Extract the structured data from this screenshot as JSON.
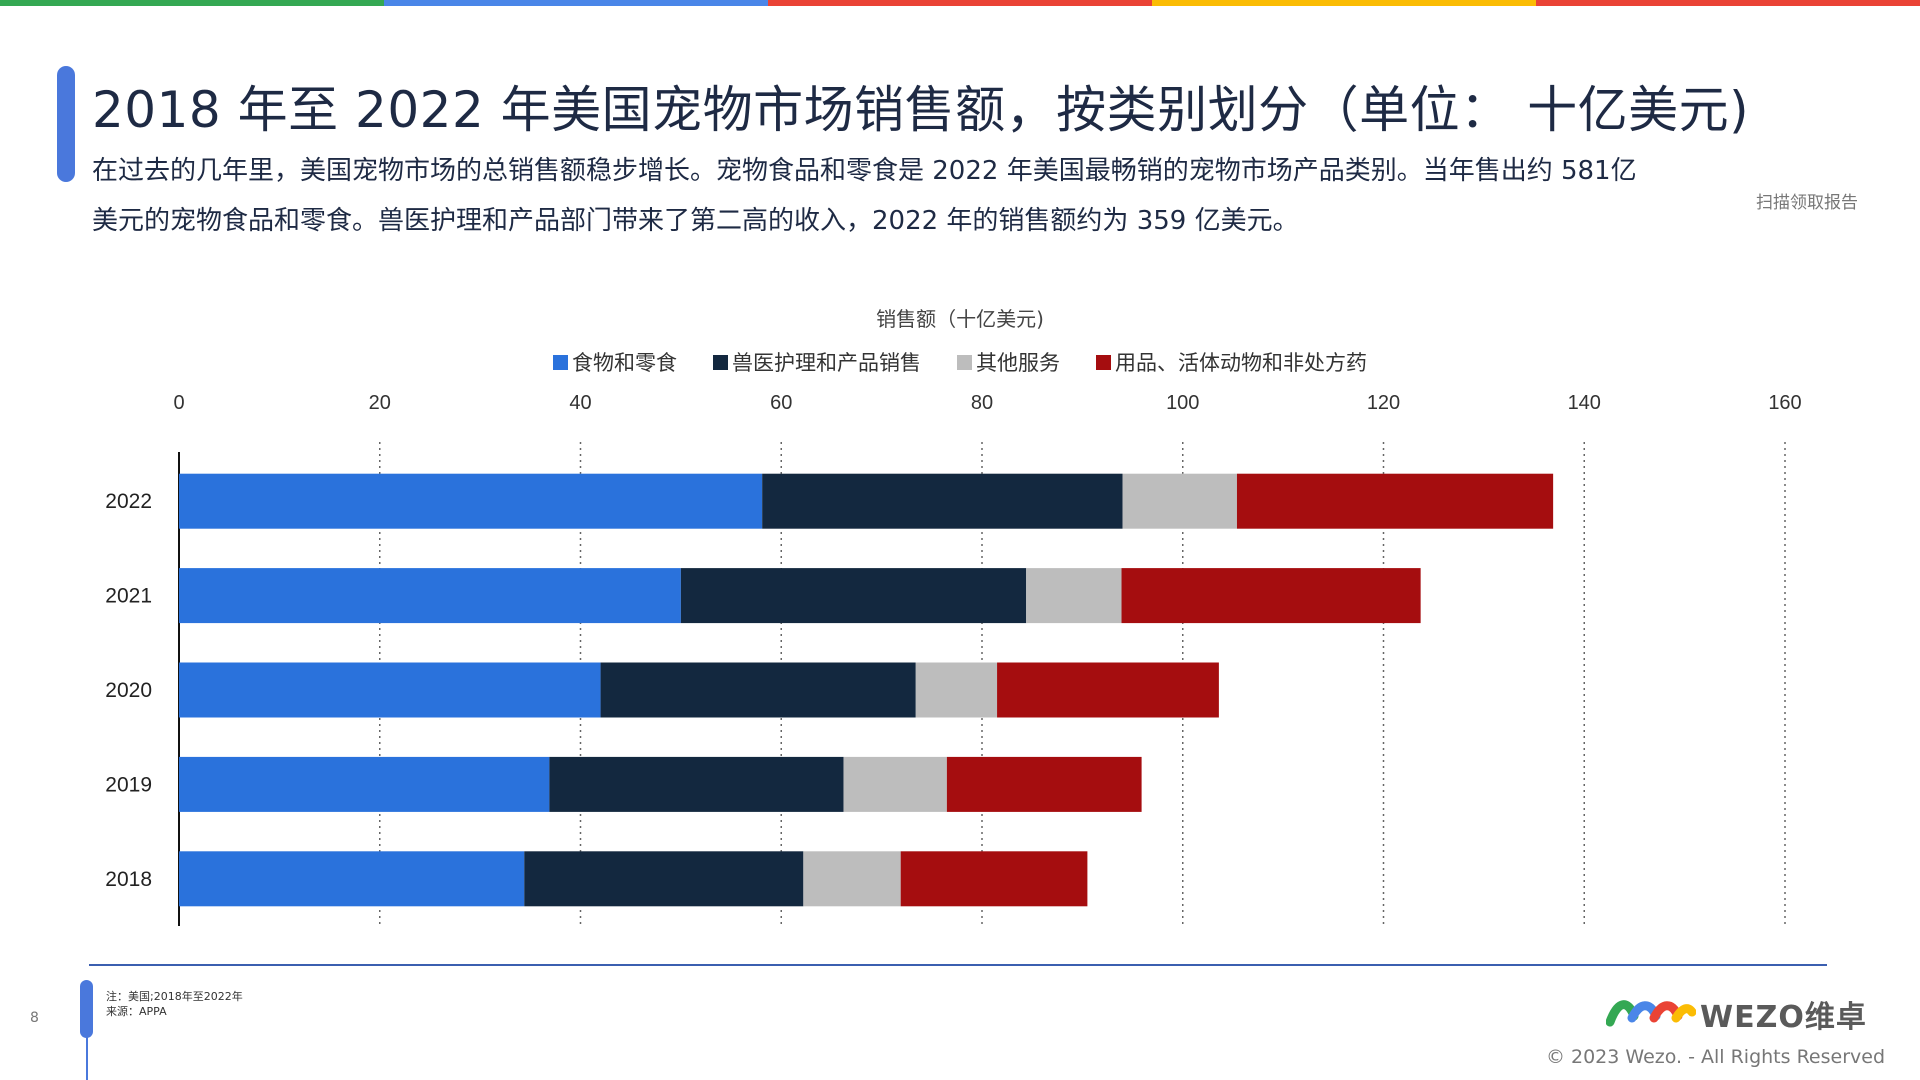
{
  "header": {
    "title": "2018 年至 2022 年美国宠物市场销售额，按类别划分（单位： 十亿美元)",
    "description": "在过去的几年里，美国宠物市场的总销售额稳步增长。宠物食品和零食是 2022 年美国最畅销的宠物市场产品类别。当年售出约 581亿美元的宠物食品和零食。兽医护理和产品部门带来了第二高的收入，2022 年的销售额约为 359 亿美元。",
    "side_note": "扫描领取报告"
  },
  "colors": {
    "topbar": [
      "#34a853",
      "#4a86e8",
      "#ea4335",
      "#fbbc04",
      "#ea4335"
    ]
  },
  "chart_data": {
    "type": "bar",
    "orientation": "horizontal",
    "stacked": true,
    "title": "销售额（十亿美元)",
    "categories": [
      "2022",
      "2021",
      "2020",
      "2019",
      "2018"
    ],
    "series": [
      {
        "name": "食物和零食",
        "color": "#2a72dc",
        "values": [
          58.1,
          50.0,
          42.0,
          36.9,
          34.4
        ]
      },
      {
        "name": "兽医护理和产品销售",
        "color": "#13283f",
        "values": [
          35.9,
          34.4,
          31.4,
          29.3,
          27.8
        ]
      },
      {
        "name": "其他服务",
        "color": "#bdbdbd",
        "values": [
          11.4,
          9.5,
          8.1,
          10.3,
          9.7
        ]
      },
      {
        "name": "用品、活体动物和非处方药",
        "color": "#a50d0f",
        "values": [
          31.5,
          29.8,
          22.1,
          19.4,
          18.6
        ]
      }
    ],
    "xlim": [
      0,
      160
    ],
    "xticks": [
      0,
      20,
      40,
      60,
      80,
      100,
      120,
      140,
      160
    ],
    "grid": "vertical dotted",
    "legend_position": "top"
  },
  "footer": {
    "page_number": "8",
    "note": "注：美国;2018年至2022年",
    "source": "来源：APPA",
    "logo_text": "WEZO维卓",
    "copyright": "© 2023 Wezo. - All Rights Reserved"
  }
}
